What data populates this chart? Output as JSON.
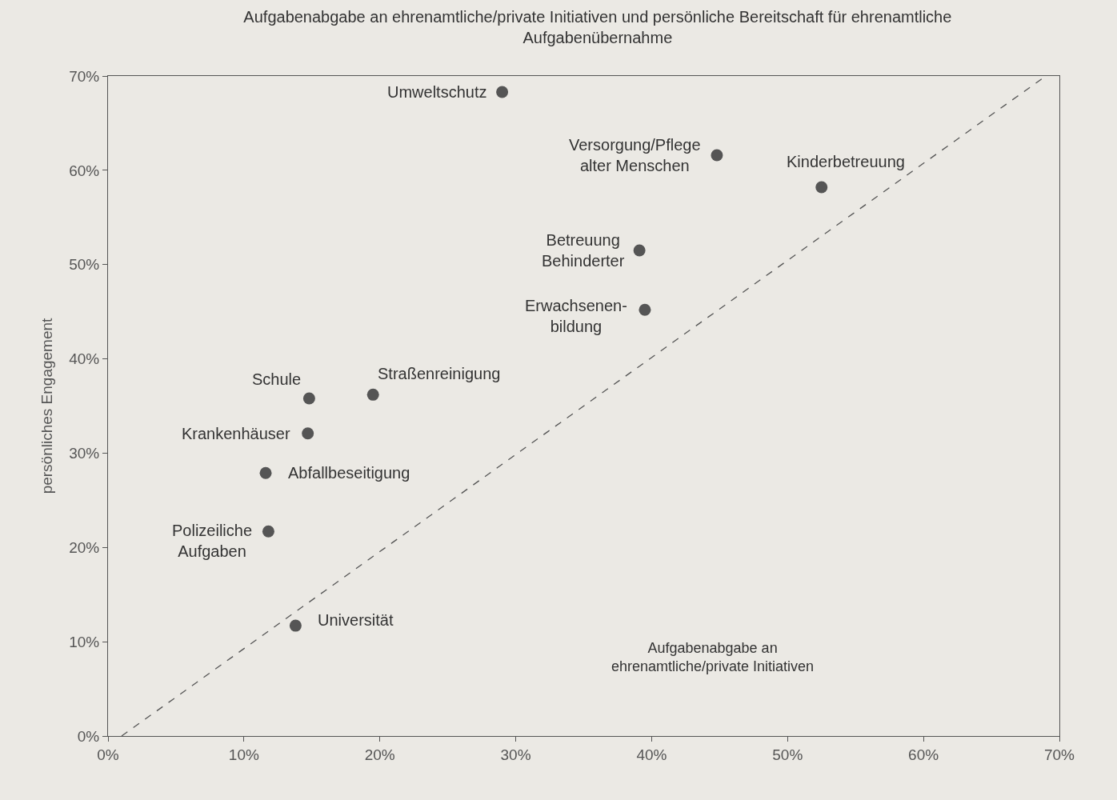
{
  "chart_data": {
    "type": "scatter",
    "title": "Aufgabenabgabe an ehrenamtliche/private Initiativen und persönliche Bereitschaft für ehrenamtliche\nAufgabenübernahme",
    "xlabel": "Aufgabenabgabe an\nehrenamtliche/private Initiativen",
    "ylabel": "persönliches Engagement",
    "series": [
      {
        "color": "#555555",
        "marker": "circle",
        "x": [
          29,
          44.8,
          52.5,
          39.1,
          39.5,
          19.5,
          14.8,
          14.7,
          11.6,
          11.8,
          13.8
        ],
        "values": [
          68.3,
          61.6,
          58.2,
          51.5,
          45.2,
          36.2,
          35.8,
          32.1,
          27.9,
          21.7,
          11.7
        ]
      },
      {
        "type": "line",
        "color": "#555555",
        "line_style": "dashed",
        "marker": "none",
        "x": [
          1,
          69
        ],
        "values": [
          0,
          70
        ]
      }
    ],
    "annotations": [
      {
        "text": "Umweltschutz",
        "x": 29,
        "y": 68.3
      },
      {
        "text": "Versorgung/Pflege\nalter Menschen",
        "x": 44.8,
        "y": 61.6
      },
      {
        "text": "Kinderbetreuung",
        "x": 52.5,
        "y": 58.2
      },
      {
        "text": "Betreuung\nBehinderter",
        "x": 39.1,
        "y": 51.5
      },
      {
        "text": "Erwachsenen-\nbildung",
        "x": 39.5,
        "y": 45.2
      },
      {
        "text": "Straßenreinigung",
        "x": 19.5,
        "y": 36.2
      },
      {
        "text": "Schule",
        "x": 14.8,
        "y": 35.8
      },
      {
        "text": "Krankenhäuser",
        "x": 14.7,
        "y": 32.1
      },
      {
        "text": "Abfallbeseitigung",
        "x": 11.6,
        "y": 27.9
      },
      {
        "text": "Polizeiliche\nAufgaben",
        "x": 11.8,
        "y": 21.7
      },
      {
        "text": "Universität",
        "x": 13.8,
        "y": 11.7
      }
    ],
    "xlim": [
      0,
      70
    ],
    "ylim": [
      0,
      70
    ],
    "xticks": [
      {
        "value": 0,
        "label": "0%"
      },
      {
        "value": 10,
        "label": "10%"
      },
      {
        "value": 20,
        "label": "20%"
      },
      {
        "value": 30,
        "label": "30%"
      },
      {
        "value": 40,
        "label": "40%"
      },
      {
        "value": 50,
        "label": "50%"
      },
      {
        "value": 60,
        "label": "60%"
      },
      {
        "value": 70,
        "label": "70%"
      }
    ],
    "yticks": [
      {
        "value": 0,
        "label": "0%"
      },
      {
        "value": 10,
        "label": "10%"
      },
      {
        "value": 20,
        "label": "20%"
      },
      {
        "value": 30,
        "label": "30%"
      },
      {
        "value": 40,
        "label": "40%"
      },
      {
        "value": 50,
        "label": "50%"
      },
      {
        "value": 60,
        "label": "60%"
      },
      {
        "value": 70,
        "label": "70%"
      }
    ],
    "grid": false
  }
}
